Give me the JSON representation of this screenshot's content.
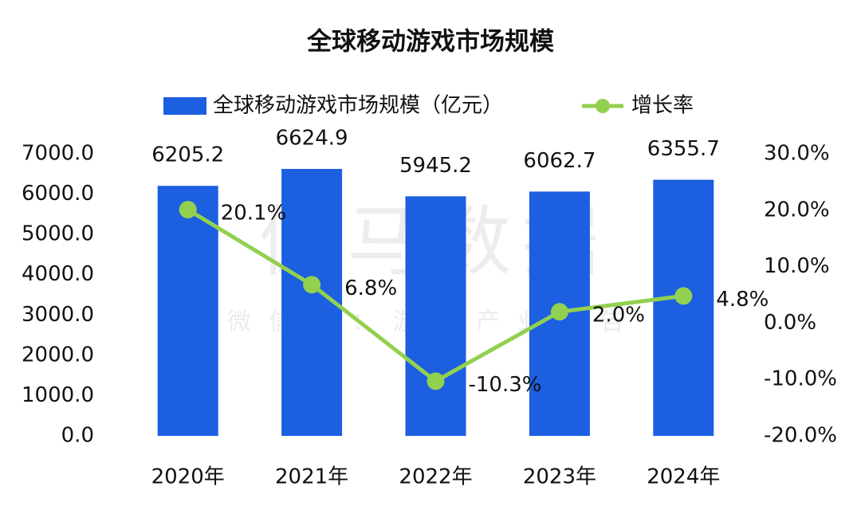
{
  "chart_data": {
    "type": "bar",
    "title": "全球移动游戏市场规模",
    "watermark": [
      "伽马数据",
      "微信号：游戏产业报告"
    ],
    "categories": [
      "2020年",
      "2021年",
      "2022年",
      "2023年",
      "2024年"
    ],
    "series": [
      {
        "name": "全球移动游戏市场规模（亿元）",
        "type": "bar",
        "color": "#1c5fe0",
        "axis": "y",
        "values": [
          6205.2,
          6624.9,
          5945.2,
          6062.7,
          6355.7
        ]
      },
      {
        "name": "增长率",
        "type": "line",
        "color": "#92d050",
        "axis": "y2",
        "values": [
          20.1,
          6.8,
          -10.3,
          2.0,
          4.8
        ],
        "value_labels": [
          "20.1%",
          "6.8%",
          "-10.3%",
          "2.0%",
          "4.8%"
        ]
      }
    ],
    "ylim": [
      0,
      7000
    ],
    "yticks": [
      {
        "value": 0,
        "label": "0.0"
      },
      {
        "value": 1000,
        "label": "1000.0"
      },
      {
        "value": 2000,
        "label": "2000.0"
      },
      {
        "value": 3000,
        "label": "3000.0"
      },
      {
        "value": 4000,
        "label": "4000.0"
      },
      {
        "value": 5000,
        "label": "5000.0"
      },
      {
        "value": 6000,
        "label": "6000.0"
      },
      {
        "value": 7000,
        "label": "7000.0"
      }
    ],
    "y2lim": [
      -20,
      30
    ],
    "y2ticks": [
      {
        "value": -20,
        "label": "-20.0%"
      },
      {
        "value": -10,
        "label": "-10.0%"
      },
      {
        "value": 0,
        "label": "0.0%"
      },
      {
        "value": 10,
        "label": "10.0%"
      },
      {
        "value": 20,
        "label": "20.0%"
      },
      {
        "value": 30,
        "label": "30.0%"
      }
    ],
    "grid": false,
    "legend": "top"
  }
}
